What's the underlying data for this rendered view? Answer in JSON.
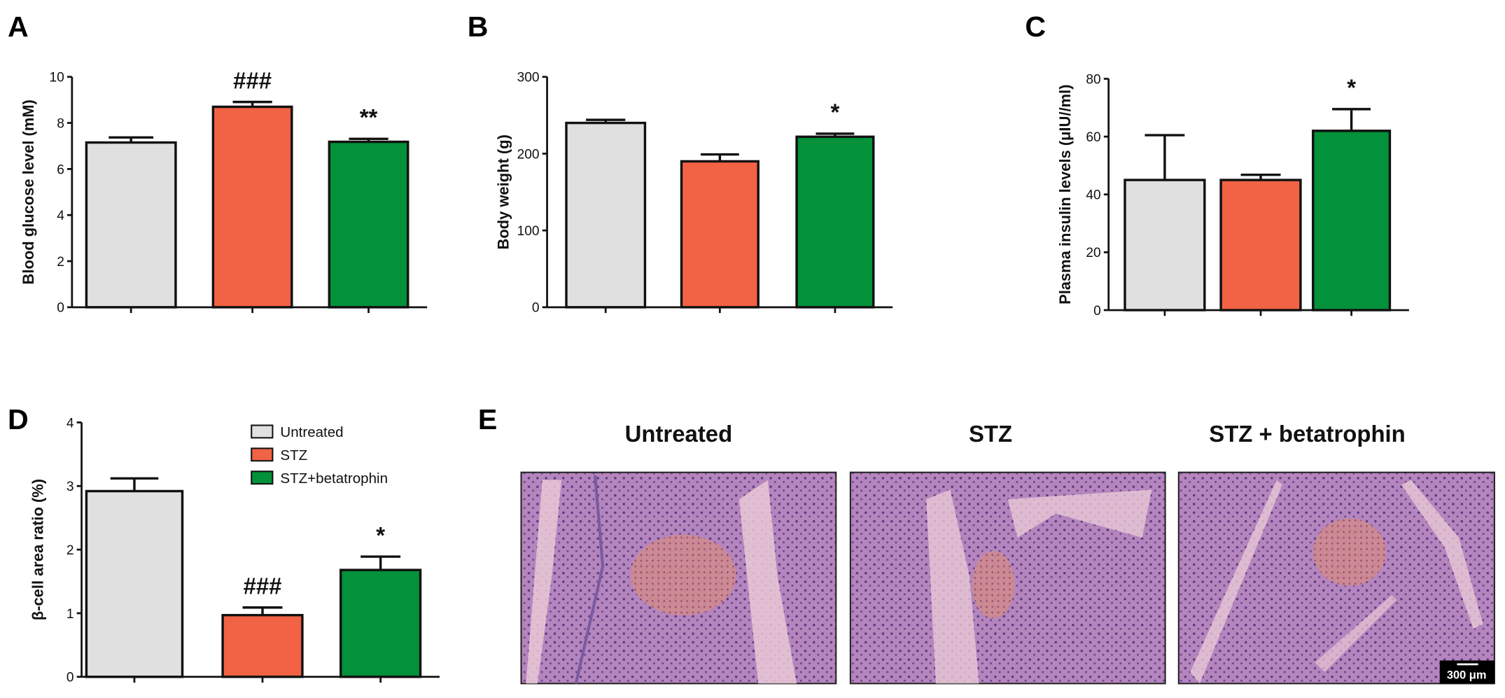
{
  "colors": {
    "Untreated": "#e0e0e0",
    "STZ": "#f26244",
    "STZ+betatrophin": "#03913a",
    "outline": "#111111"
  },
  "legend": {
    "entries": [
      "Untreated",
      "STZ",
      "STZ+betatrophin"
    ],
    "placement": "top-right of panel D"
  },
  "chart_data": [
    {
      "panel": "A",
      "type": "bar",
      "ylabel": "Blood glucose level (mM)",
      "ylim": [
        0,
        10
      ],
      "yticks": [
        0,
        2,
        4,
        6,
        8,
        10
      ],
      "categories": [
        "Untreated",
        "STZ",
        "STZ+betatrophin"
      ],
      "values": [
        7.15,
        8.7,
        7.18
      ],
      "errors": [
        0.22,
        0.21,
        0.13
      ],
      "annotations": [
        "",
        "###",
        "**"
      ]
    },
    {
      "panel": "B",
      "type": "bar",
      "ylabel": "Body weight (g)",
      "ylim": [
        0,
        300
      ],
      "yticks": [
        0,
        100,
        200,
        300
      ],
      "categories": [
        "Untreated",
        "STZ",
        "STZ+betatrophin"
      ],
      "values": [
        240,
        190,
        222
      ],
      "errors": [
        4,
        9,
        4
      ],
      "annotations": [
        "",
        "",
        "*"
      ]
    },
    {
      "panel": "C",
      "type": "bar",
      "ylabel": "Plasma insulin levels (μIU//ml)",
      "ylim": [
        0,
        80
      ],
      "yticks": [
        0,
        20,
        40,
        60,
        80
      ],
      "categories": [
        "Untreated",
        "STZ",
        "STZ+betatrophin"
      ],
      "values": [
        45,
        45,
        62
      ],
      "errors": [
        15.5,
        1.8,
        7.5
      ],
      "annotations": [
        "",
        "",
        "*"
      ]
    },
    {
      "panel": "D",
      "type": "bar",
      "ylabel": "β-cell area ratio (%)",
      "ylim": [
        0,
        4
      ],
      "yticks": [
        0,
        1,
        2,
        3,
        4
      ],
      "categories": [
        "Untreated",
        "STZ",
        "STZ+betatrophin"
      ],
      "values": [
        2.92,
        0.97,
        1.68
      ],
      "errors": [
        0.2,
        0.12,
        0.21
      ],
      "annotations": [
        "",
        "###",
        "*"
      ]
    }
  ],
  "panel_e": {
    "label": "E",
    "titles": [
      "Untreated",
      "STZ",
      "STZ + betatrophin"
    ],
    "scale_bar": "300 μm"
  }
}
